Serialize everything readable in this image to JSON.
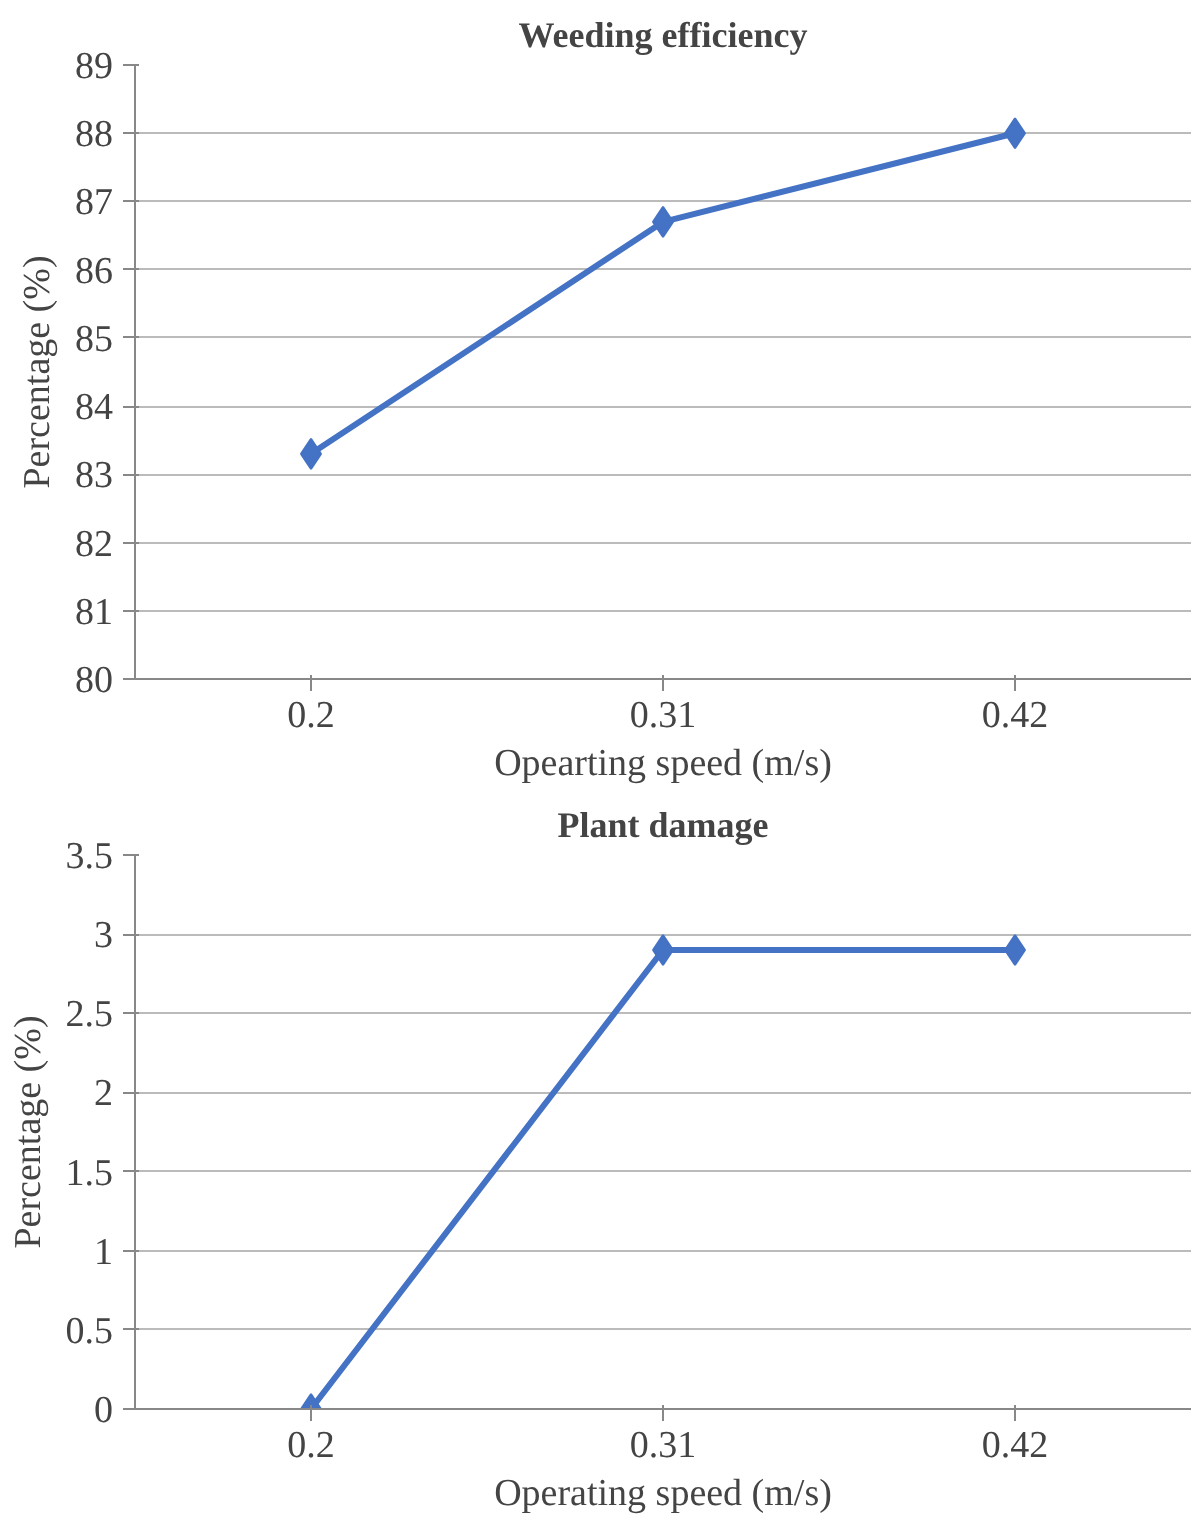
{
  "chart_data": [
    {
      "type": "line",
      "title": "Weeding efficiency",
      "xlabel": "Opearting speed (m/s)",
      "ylabel": "Percentage (%)",
      "categories": [
        "0.2",
        "0.31",
        "0.42"
      ],
      "series": [
        {
          "color": "#4472c4",
          "values": [
            83.3,
            86.7,
            88.0
          ]
        }
      ],
      "ylim": [
        80,
        89
      ],
      "yticks": [
        80,
        81,
        82,
        83,
        84,
        85,
        86,
        87,
        88,
        89
      ],
      "grid": "y",
      "marker": "diamond",
      "line_style": "solid"
    },
    {
      "type": "line",
      "title": "Plant damage",
      "xlabel": "Operating speed (m/s)",
      "ylabel": "Percentage (%)",
      "categories": [
        "0.2",
        "0.31",
        "0.42"
      ],
      "series": [
        {
          "color": "#4472c4",
          "values": [
            0,
            2.9,
            2.9
          ]
        }
      ],
      "ylim": [
        0,
        3.5
      ],
      "yticks": [
        0,
        0.5,
        1,
        1.5,
        2,
        2.5,
        3,
        3.5
      ],
      "grid": "y",
      "marker": "diamond",
      "line_style": "solid"
    }
  ]
}
